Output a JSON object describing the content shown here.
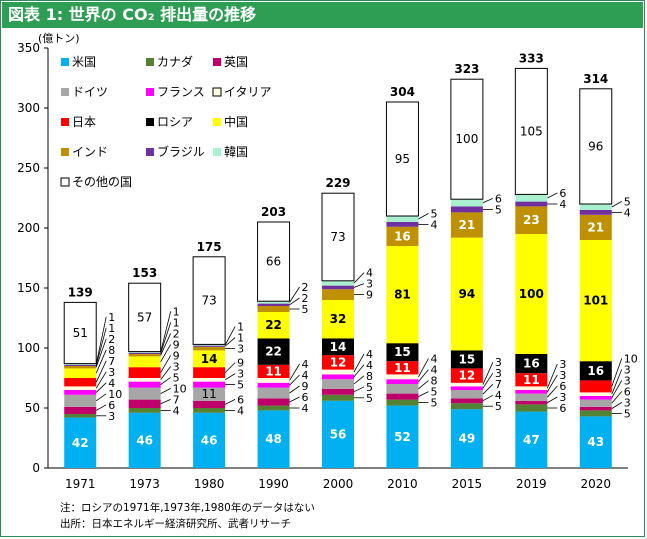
{
  "title": "図表 1: 世界の CO₂ 排出量の推移",
  "chart_data": {
    "type": "bar",
    "stacked": true,
    "unit_label": "(億トン)",
    "ylim": [
      0,
      350
    ],
    "yticks": [
      0,
      50,
      100,
      150,
      200,
      250,
      300,
      350
    ],
    "categories": [
      "1971",
      "1973",
      "1980",
      "1990",
      "2000",
      "2010",
      "2015",
      "2019",
      "2020"
    ],
    "totals": [
      139,
      153,
      175,
      203,
      229,
      304,
      323,
      333,
      314
    ],
    "series": [
      {
        "name": "米国",
        "color": "#00b0f0",
        "values": [
          42,
          46,
          46,
          48,
          56,
          52,
          49,
          47,
          43
        ]
      },
      {
        "name": "カナダ",
        "color": "#548235",
        "values": [
          3,
          4,
          4,
          4,
          5,
          5,
          5,
          6,
          5
        ]
      },
      {
        "name": "英国",
        "color": "#c0006a",
        "values": [
          6,
          7,
          6,
          6,
          5,
          5,
          4,
          3,
          3
        ]
      },
      {
        "name": "ドイツ",
        "color": "#a6a6a6",
        "values": [
          10,
          10,
          11,
          9,
          8,
          8,
          7,
          6,
          6
        ]
      },
      {
        "name": "フランス",
        "color": "#ff00ff",
        "values": [
          4,
          5,
          5,
          4,
          4,
          4,
          3,
          3,
          3
        ]
      },
      {
        "name": "イタリア",
        "color": "#fffde0",
        "values": [
          3,
          3,
          3,
          4,
          4,
          4,
          3,
          3,
          3
        ]
      },
      {
        "name": "日本",
        "color": "#ff0000",
        "values": [
          7,
          9,
          9,
          11,
          12,
          11,
          12,
          11,
          10
        ]
      },
      {
        "name": "ロシア",
        "color": "#000000",
        "values": [
          null,
          null,
          null,
          22,
          14,
          15,
          15,
          16,
          16
        ]
      },
      {
        "name": "中国",
        "color": "#ffff00",
        "values": [
          8,
          9,
          14,
          22,
          32,
          81,
          94,
          100,
          101
        ]
      },
      {
        "name": "インド",
        "color": "#bf9000",
        "values": [
          2,
          2,
          3,
          5,
          9,
          16,
          21,
          23,
          21
        ]
      },
      {
        "name": "ブラジル",
        "color": "#7030a0",
        "values": [
          1,
          1,
          1,
          2,
          3,
          4,
          5,
          4,
          4
        ]
      },
      {
        "name": "韓国",
        "color": "#a9f0d1",
        "values": [
          1,
          1,
          1,
          2,
          4,
          5,
          6,
          6,
          5
        ]
      },
      {
        "name": "その他の国",
        "color": "#ffffff",
        "values": [
          51,
          57,
          73,
          66,
          73,
          95,
          100,
          105,
          96
        ]
      }
    ],
    "legend_placement": "top-left",
    "grid": false
  },
  "notes": [
    "注：ロシアの1971年,1973年,1980年のデータはない",
    "出所：日本エネルギー経済研究所、武者リサーチ"
  ]
}
